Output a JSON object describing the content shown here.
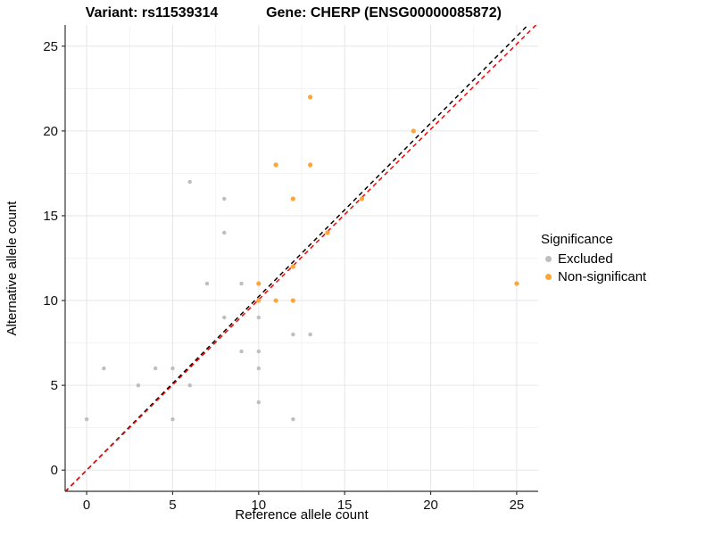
{
  "titles": {
    "variant": "Variant: rs11539314",
    "gene": "Gene: CHERP (ENSG00000085872)"
  },
  "legend": {
    "title": "Significance",
    "items": [
      {
        "label": "Excluded",
        "color": "#BEBEBE"
      },
      {
        "label": "Non-significant",
        "color": "#FFA537"
      }
    ]
  },
  "chart_data": {
    "type": "scatter",
    "xlabel": "Reference allele count",
    "ylabel": "Alternative allele count",
    "xlim": [
      -1.25,
      26.25
    ],
    "ylim": [
      -1.25,
      26.25
    ],
    "x_ticks": [
      0,
      5,
      10,
      15,
      20,
      25
    ],
    "y_ticks": [
      0,
      5,
      10,
      15,
      20,
      25
    ],
    "minor_ticks": [
      2.5,
      7.5,
      12.5,
      17.5,
      22.5
    ],
    "grid": true,
    "grid_major_color": "#e6e6e6",
    "grid_minor_color": "#f3f3f3",
    "axis_color": "#333333",
    "tick_label_color": "#111111",
    "legend_position": "right",
    "series": [
      {
        "name": "Excluded",
        "color": "#BEBEBE",
        "radius": 2.2,
        "points": [
          [
            0,
            3
          ],
          [
            1,
            6
          ],
          [
            3,
            5
          ],
          [
            4,
            6
          ],
          [
            5,
            3
          ],
          [
            5,
            6
          ],
          [
            6,
            5
          ],
          [
            6,
            17
          ],
          [
            7,
            11
          ],
          [
            8,
            9
          ],
          [
            8,
            14
          ],
          [
            8,
            16
          ],
          [
            9,
            7
          ],
          [
            9,
            11
          ],
          [
            10,
            4
          ],
          [
            10,
            6
          ],
          [
            10,
            7
          ],
          [
            10,
            9
          ],
          [
            12,
            3
          ],
          [
            12,
            8
          ],
          [
            13,
            8
          ]
        ]
      },
      {
        "name": "Non-significant",
        "color": "#FFA537",
        "radius": 2.6,
        "points": [
          [
            10,
            10
          ],
          [
            10,
            11
          ],
          [
            11,
            10
          ],
          [
            11,
            18
          ],
          [
            12,
            10
          ],
          [
            12,
            12
          ],
          [
            12,
            16
          ],
          [
            13,
            18
          ],
          [
            13,
            22
          ],
          [
            14,
            14
          ],
          [
            16,
            16
          ],
          [
            19,
            20
          ],
          [
            25,
            11
          ]
        ]
      }
    ],
    "lines": [
      {
        "name": "black-dashed-line",
        "color": "#000000",
        "slope": 1.023,
        "intercept": 0,
        "dash": "5,4"
      },
      {
        "name": "red-dashed-line",
        "color": "#ff0000",
        "slope": 1.005,
        "intercept": 0,
        "dash": "5,4"
      }
    ]
  }
}
